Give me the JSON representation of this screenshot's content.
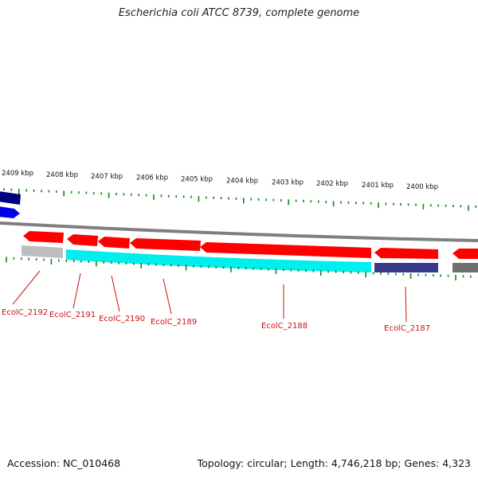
{
  "header": {
    "title": "Escherichia coli ATCC 8739, complete genome"
  },
  "footer": {
    "accession": "Accession: NC_010468",
    "topology": "Topology: circular; Length: 4,746,218 bp; Genes: 4,323"
  },
  "ruler": {
    "labels": [
      "2409 kbp",
      "2408 kbp",
      "2407 kbp",
      "2406 kbp",
      "2405 kbp",
      "2404 kbp",
      "2403 kbp",
      "2402 kbp",
      "2401 kbp",
      "2400 kbp"
    ]
  },
  "genes": {
    "labels": [
      "EcolC_2192",
      "EcolC_2191",
      "EcolC_2190",
      "EcolC_2189",
      "EcolC_2188",
      "EcolC_2187"
    ]
  },
  "colors": {
    "forward_cds": "#ff0000",
    "cyan_feature": "#00eeee",
    "navy_feature": "#3a3a8c",
    "dark_blue_feature": "#000080",
    "blue_feature": "#0000ee",
    "backbone": "#808080",
    "ticks": "#118811",
    "label_text": "#cc1111"
  }
}
